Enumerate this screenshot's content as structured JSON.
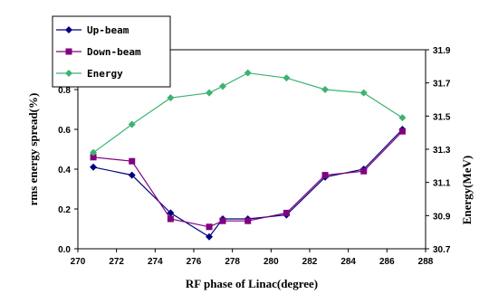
{
  "chart_data": {
    "type": "line",
    "xlabel": "RF phase of Linac(degree)",
    "ylabel_left": "rms energy spread(%)",
    "ylabel_right": "Energy(MeV)",
    "xlim": [
      270,
      288
    ],
    "x_ticks": [
      "270",
      "272",
      "274",
      "276",
      "278",
      "280",
      "282",
      "284",
      "286",
      "288"
    ],
    "ylim_left": [
      0.0,
      1.0
    ],
    "y_ticks_left": [
      "0.0",
      "0.2",
      "0.4",
      "0.6",
      "0.8",
      "1.0"
    ],
    "ylim_right": [
      30.7,
      31.9
    ],
    "y_ticks_right": [
      "30.7",
      "30.9",
      "31.1",
      "31.3",
      "31.5",
      "31.7",
      "31.9"
    ],
    "legend_position": "top-left",
    "grid": false,
    "series": [
      {
        "name": "Up-beam",
        "axis": "left",
        "color": "#000080",
        "marker": "diamond",
        "x": [
          270.8,
          272.8,
          274.8,
          276.8,
          277.5,
          278.8,
          280.8,
          282.8,
          284.8,
          286.8
        ],
        "y": [
          0.41,
          0.37,
          0.18,
          0.06,
          0.15,
          0.15,
          0.17,
          0.36,
          0.4,
          0.6
        ]
      },
      {
        "name": "Down-beam",
        "axis": "left",
        "color": "#800080",
        "marker": "square",
        "x": [
          270.8,
          272.8,
          274.8,
          276.8,
          277.5,
          278.8,
          280.8,
          282.8,
          284.8,
          286.8
        ],
        "y": [
          0.46,
          0.44,
          0.15,
          0.11,
          0.14,
          0.14,
          0.18,
          0.37,
          0.39,
          0.59
        ]
      },
      {
        "name": "Energy",
        "axis": "right",
        "color": "#3cb371",
        "marker": "diamond",
        "x": [
          270.8,
          272.8,
          274.8,
          276.8,
          277.5,
          278.8,
          280.8,
          282.8,
          284.8,
          286.8
        ],
        "y": [
          31.28,
          31.45,
          31.61,
          31.64,
          31.68,
          31.76,
          31.73,
          31.66,
          31.64,
          31.49
        ]
      }
    ]
  }
}
